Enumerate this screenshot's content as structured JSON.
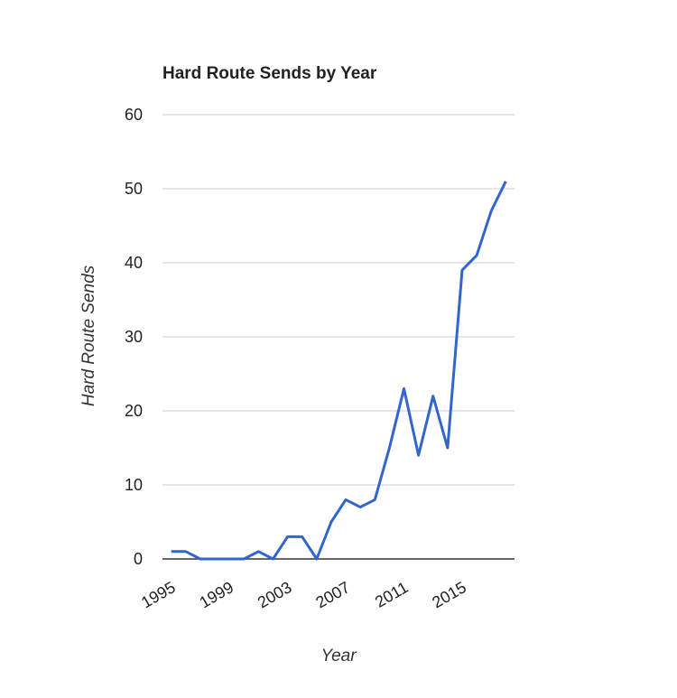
{
  "chart_data": {
    "type": "line",
    "title": "Hard Route Sends by Year",
    "x_label": "Year",
    "y_label": "Hard Route Sends",
    "x": [
      1995,
      1996,
      1997,
      1998,
      1999,
      2000,
      2001,
      2002,
      2003,
      2004,
      2005,
      2006,
      2007,
      2008,
      2009,
      2010,
      2011,
      2012,
      2013,
      2014,
      2015,
      2016,
      2017,
      2018
    ],
    "series": [
      {
        "name": "Hard Route Sends",
        "color": "#3366cc",
        "values": [
          1,
          1,
          0,
          0,
          0,
          0,
          1,
          0,
          3,
          3,
          0,
          5,
          8,
          7,
          8,
          15,
          23,
          14,
          22,
          15,
          39,
          41,
          47,
          51
        ]
      }
    ],
    "xlim": [
      1994.4,
      2018.6
    ],
    "xticks": [
      1995,
      1999,
      2003,
      2007,
      2011,
      2015
    ],
    "ylim": [
      0,
      60
    ],
    "yticks": [
      0,
      10,
      20,
      30,
      40,
      50,
      60
    ],
    "grid": true
  }
}
